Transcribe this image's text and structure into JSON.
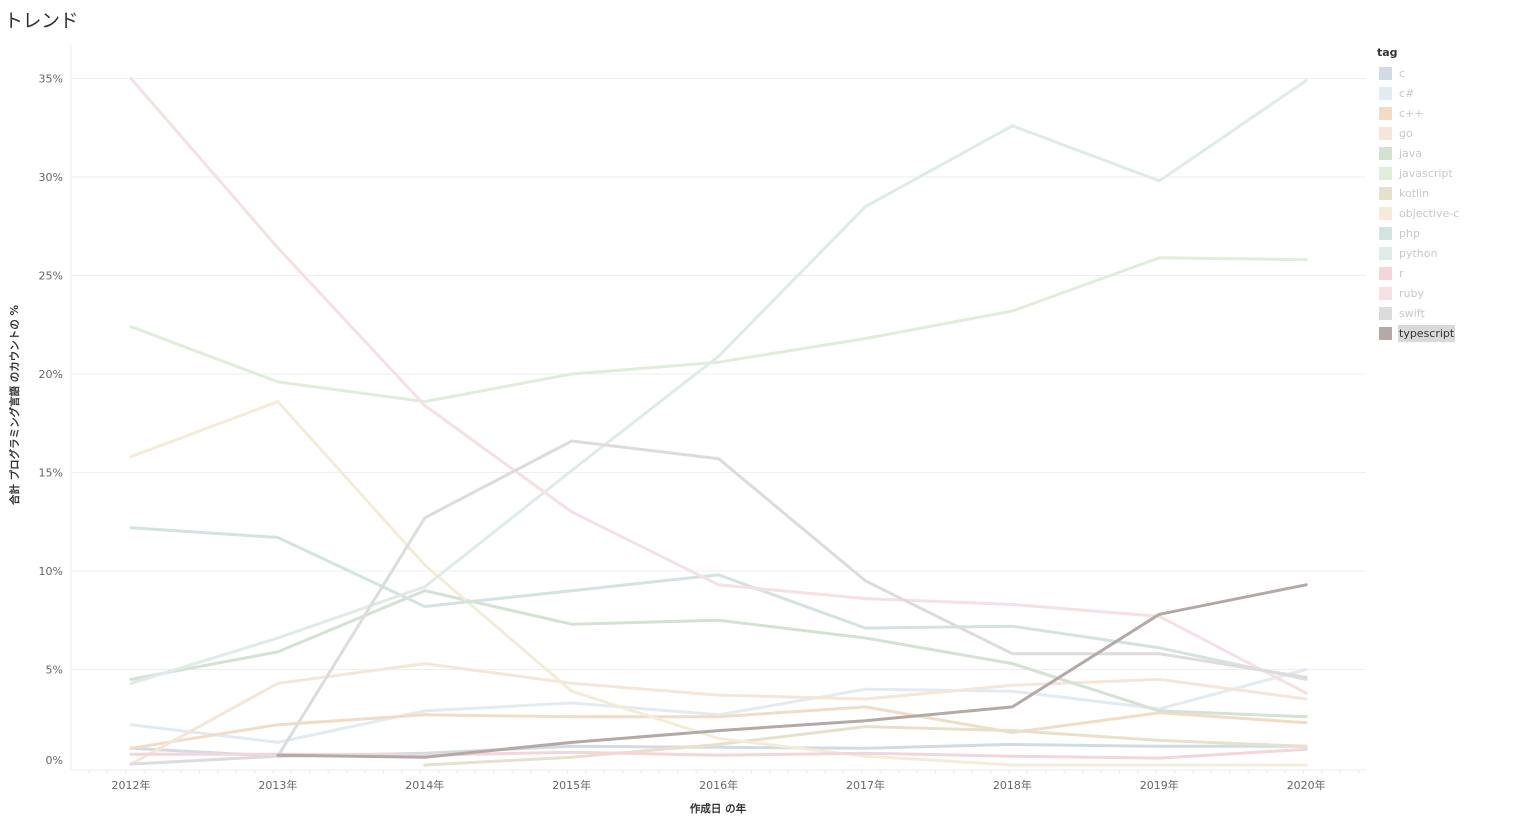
{
  "page": {
    "title": "トレンド"
  },
  "legend": {
    "title": "tag",
    "selected": "typescript",
    "items": [
      {
        "label": "c",
        "color": "#d2dbe3"
      },
      {
        "label": "c#",
        "color": "#e3ebf2"
      },
      {
        "label": "c++",
        "color": "#f2dcc6"
      },
      {
        "label": "go",
        "color": "#f5e6da"
      },
      {
        "label": "java",
        "color": "#d3e2d2"
      },
      {
        "label": "javascript",
        "color": "#e0edda"
      },
      {
        "label": "kotlin",
        "color": "#e8e0cc"
      },
      {
        "label": "objective-c",
        "color": "#f4ecd8"
      },
      {
        "label": "php",
        "color": "#d3e3e1"
      },
      {
        "label": "python",
        "color": "#dfebe7"
      },
      {
        "label": "r",
        "color": "#f2d6d9"
      },
      {
        "label": "ruby",
        "color": "#f5e0e2"
      },
      {
        "label": "swift",
        "color": "#dcdcdc"
      },
      {
        "label": "typescript",
        "color": "#b4a9a5"
      }
    ]
  },
  "chart_data": {
    "type": "line",
    "title": "トレンド",
    "xlabel": "作成日 の年",
    "ylabel": "合計 プログラミング言語 のカウントの %",
    "categories": [
      "2012年",
      "2013年",
      "2014年",
      "2015年",
      "2016年",
      "2017年",
      "2018年",
      "2019年",
      "2020年"
    ],
    "yticks": [
      "0%",
      "5%",
      "10%",
      "15%",
      "20%",
      "25%",
      "30%",
      "35%"
    ],
    "ylim": [
      0,
      35
    ],
    "grid": true,
    "legend_position": "right",
    "series": [
      {
        "name": "c",
        "values": [
          1.0,
          0.6,
          0.75,
          1.1,
          1.05,
          1.0,
          1.2,
          1.1,
          1.1
        ]
      },
      {
        "name": "c#",
        "values": [
          2.2,
          1.3,
          2.9,
          3.3,
          2.7,
          4.0,
          3.9,
          3.0,
          5.0
        ]
      },
      {
        "name": "c++",
        "values": [
          1.0,
          2.2,
          2.7,
          2.6,
          2.6,
          3.1,
          1.8,
          2.8,
          2.3
        ]
      },
      {
        "name": "go",
        "values": [
          0.2,
          4.3,
          5.3,
          4.3,
          3.7,
          3.5,
          4.2,
          4.5,
          3.5
        ]
      },
      {
        "name": "java",
        "values": [
          4.5,
          5.9,
          9.0,
          7.3,
          7.5,
          6.6,
          5.3,
          2.9,
          2.6
        ]
      },
      {
        "name": "javascript",
        "values": [
          22.4,
          19.6,
          18.6,
          20.0,
          20.6,
          21.8,
          23.2,
          25.9,
          25.8
        ]
      },
      {
        "name": "kotlin",
        "values": [
          null,
          null,
          0.15,
          0.55,
          1.2,
          2.1,
          1.9,
          1.4,
          1.1
        ]
      },
      {
        "name": "objective-c",
        "values": [
          15.8,
          18.6,
          10.3,
          3.9,
          1.5,
          0.6,
          0.15,
          0.15,
          0.15
        ]
      },
      {
        "name": "php",
        "values": [
          12.2,
          11.7,
          8.2,
          9.0,
          9.8,
          7.1,
          7.2,
          6.1,
          4.5
        ]
      },
      {
        "name": "python",
        "values": [
          4.3,
          6.6,
          9.2,
          15.1,
          20.9,
          28.5,
          32.6,
          29.8,
          34.9
        ]
      },
      {
        "name": "r",
        "values": [
          0.7,
          0.7,
          0.65,
          0.8,
          0.65,
          0.75,
          0.6,
          0.5,
          0.95
        ]
      },
      {
        "name": "ruby",
        "values": [
          35.0,
          26.4,
          18.4,
          13.0,
          9.3,
          8.6,
          8.3,
          7.7,
          3.8
        ]
      },
      {
        "name": "swift",
        "values": [
          0.2,
          0.6,
          12.7,
          16.6,
          15.7,
          9.5,
          5.8,
          5.8,
          4.6
        ]
      },
      {
        "name": "typescript",
        "values": [
          null,
          0.65,
          0.55,
          1.3,
          1.9,
          2.4,
          3.1,
          7.8,
          9.3
        ]
      }
    ]
  }
}
